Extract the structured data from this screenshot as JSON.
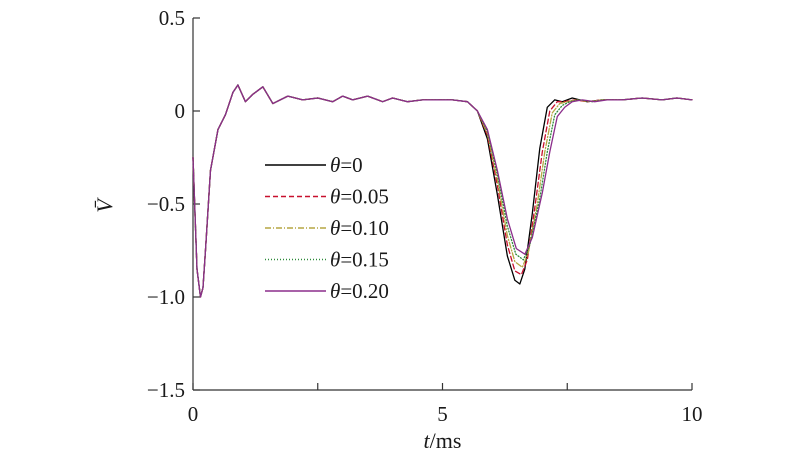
{
  "chart_data": {
    "type": "line",
    "title": "",
    "xlabel": "t/ms",
    "ylabel": "V̄",
    "xlim": [
      0,
      10
    ],
    "ylim": [
      -1.5,
      0.5
    ],
    "x_ticks": [
      0,
      5,
      10
    ],
    "x_tick_labels": [
      "0",
      "5",
      "10"
    ],
    "x_minor_ticks": [
      2.5,
      7.5
    ],
    "y_ticks": [
      0.5,
      0,
      -0.5,
      -1.0,
      -1.5
    ],
    "y_tick_labels": [
      "0.5",
      "0",
      "−0.5",
      "−1.0",
      "−1.5"
    ],
    "grid": false,
    "legend_position": "center-left",
    "series": [
      {
        "name": "θ=0",
        "color": "#000000",
        "dash": "",
        "x": [
          0,
          0.08,
          0.15,
          0.2,
          0.25,
          0.35,
          0.5,
          0.65,
          0.8,
          0.9,
          1.05,
          1.2,
          1.4,
          1.6,
          1.9,
          2.2,
          2.5,
          2.8,
          3.0,
          3.2,
          3.5,
          3.8,
          4.0,
          4.3,
          4.6,
          4.9,
          5.2,
          5.5,
          5.7,
          5.9,
          6.1,
          6.3,
          6.45,
          6.55,
          6.65,
          6.8,
          6.95,
          7.1,
          7.25,
          7.4,
          7.6,
          7.9,
          8.2,
          8.6,
          9.0,
          9.4,
          9.7,
          10.0
        ],
        "y": [
          -0.25,
          -0.85,
          -1.0,
          -0.95,
          -0.75,
          -0.32,
          -0.1,
          -0.02,
          0.1,
          0.14,
          0.05,
          0.09,
          0.13,
          0.04,
          0.08,
          0.06,
          0.07,
          0.05,
          0.08,
          0.06,
          0.08,
          0.05,
          0.07,
          0.05,
          0.06,
          0.06,
          0.06,
          0.05,
          0.0,
          -0.15,
          -0.45,
          -0.78,
          -0.91,
          -0.93,
          -0.85,
          -0.55,
          -0.2,
          0.02,
          0.06,
          0.05,
          0.07,
          0.05,
          0.06,
          0.06,
          0.07,
          0.06,
          0.07,
          0.06
        ]
      },
      {
        "name": "θ=0.05",
        "color": "#c8102e",
        "dash": "5,3",
        "x": [
          0,
          0.08,
          0.15,
          0.2,
          0.25,
          0.35,
          0.5,
          0.65,
          0.8,
          0.9,
          1.05,
          1.2,
          1.4,
          1.6,
          1.9,
          2.2,
          2.5,
          2.8,
          3.0,
          3.2,
          3.5,
          3.8,
          4.0,
          4.3,
          4.6,
          4.9,
          5.2,
          5.5,
          5.7,
          5.9,
          6.1,
          6.3,
          6.45,
          6.58,
          6.7,
          6.85,
          7.0,
          7.15,
          7.3,
          7.45,
          7.65,
          7.9,
          8.2,
          8.6,
          9.0,
          9.4,
          9.7,
          10.0
        ],
        "y": [
          -0.25,
          -0.85,
          -1.0,
          -0.95,
          -0.75,
          -0.32,
          -0.1,
          -0.02,
          0.1,
          0.14,
          0.05,
          0.09,
          0.13,
          0.04,
          0.08,
          0.06,
          0.07,
          0.05,
          0.08,
          0.06,
          0.08,
          0.05,
          0.07,
          0.05,
          0.06,
          0.06,
          0.06,
          0.05,
          0.0,
          -0.13,
          -0.4,
          -0.72,
          -0.86,
          -0.88,
          -0.8,
          -0.52,
          -0.22,
          0.0,
          0.05,
          0.05,
          0.06,
          0.05,
          0.06,
          0.06,
          0.07,
          0.06,
          0.07,
          0.06
        ]
      },
      {
        "name": "θ=0.10",
        "color": "#b5a642",
        "dash": "6,2,1,2",
        "x": [
          0,
          0.08,
          0.15,
          0.2,
          0.25,
          0.35,
          0.5,
          0.65,
          0.8,
          0.9,
          1.05,
          1.2,
          1.4,
          1.6,
          1.9,
          2.2,
          2.5,
          2.8,
          3.0,
          3.2,
          3.5,
          3.8,
          4.0,
          4.3,
          4.6,
          4.9,
          5.2,
          5.5,
          5.7,
          5.9,
          6.1,
          6.3,
          6.45,
          6.6,
          6.72,
          6.9,
          7.05,
          7.2,
          7.35,
          7.5,
          7.7,
          7.95,
          8.2,
          8.6,
          9.0,
          9.4,
          9.7,
          10.0
        ],
        "y": [
          -0.25,
          -0.85,
          -1.0,
          -0.95,
          -0.75,
          -0.32,
          -0.1,
          -0.02,
          0.1,
          0.14,
          0.05,
          0.09,
          0.13,
          0.04,
          0.08,
          0.06,
          0.07,
          0.05,
          0.08,
          0.06,
          0.08,
          0.05,
          0.07,
          0.05,
          0.06,
          0.06,
          0.06,
          0.05,
          0.0,
          -0.12,
          -0.37,
          -0.67,
          -0.81,
          -0.84,
          -0.76,
          -0.5,
          -0.22,
          -0.01,
          0.04,
          0.05,
          0.06,
          0.05,
          0.06,
          0.06,
          0.07,
          0.06,
          0.07,
          0.06
        ]
      },
      {
        "name": "θ=0.15",
        "color": "#2e8b3a",
        "dash": "1,2",
        "x": [
          0,
          0.08,
          0.15,
          0.2,
          0.25,
          0.35,
          0.5,
          0.65,
          0.8,
          0.9,
          1.05,
          1.2,
          1.4,
          1.6,
          1.9,
          2.2,
          2.5,
          2.8,
          3.0,
          3.2,
          3.5,
          3.8,
          4.0,
          4.3,
          4.6,
          4.9,
          5.2,
          5.5,
          5.7,
          5.9,
          6.1,
          6.3,
          6.47,
          6.62,
          6.75,
          6.95,
          7.1,
          7.25,
          7.4,
          7.55,
          7.75,
          8.0,
          8.25,
          8.6,
          9.0,
          9.4,
          9.7,
          10.0
        ],
        "y": [
          -0.25,
          -0.85,
          -1.0,
          -0.95,
          -0.75,
          -0.32,
          -0.1,
          -0.02,
          0.1,
          0.14,
          0.05,
          0.09,
          0.13,
          0.04,
          0.08,
          0.06,
          0.07,
          0.05,
          0.08,
          0.06,
          0.08,
          0.05,
          0.07,
          0.05,
          0.06,
          0.06,
          0.06,
          0.05,
          0.0,
          -0.11,
          -0.34,
          -0.62,
          -0.77,
          -0.8,
          -0.72,
          -0.47,
          -0.22,
          -0.02,
          0.03,
          0.05,
          0.06,
          0.05,
          0.06,
          0.06,
          0.07,
          0.06,
          0.07,
          0.06
        ]
      },
      {
        "name": "θ=0.20",
        "color": "#8b2d8b",
        "dash": "",
        "x": [
          0,
          0.08,
          0.15,
          0.2,
          0.25,
          0.35,
          0.5,
          0.65,
          0.8,
          0.9,
          1.05,
          1.2,
          1.4,
          1.6,
          1.9,
          2.2,
          2.5,
          2.8,
          3.0,
          3.2,
          3.5,
          3.8,
          4.0,
          4.3,
          4.6,
          4.9,
          5.2,
          5.5,
          5.7,
          5.9,
          6.1,
          6.3,
          6.48,
          6.65,
          6.8,
          7.0,
          7.15,
          7.3,
          7.45,
          7.6,
          7.8,
          8.05,
          8.3,
          8.6,
          9.0,
          9.4,
          9.7,
          10.0
        ],
        "y": [
          -0.25,
          -0.85,
          -1.0,
          -0.95,
          -0.75,
          -0.32,
          -0.1,
          -0.02,
          0.1,
          0.14,
          0.05,
          0.09,
          0.13,
          0.04,
          0.08,
          0.06,
          0.07,
          0.05,
          0.08,
          0.06,
          0.08,
          0.05,
          0.07,
          0.05,
          0.06,
          0.06,
          0.06,
          0.05,
          0.0,
          -0.1,
          -0.32,
          -0.58,
          -0.74,
          -0.77,
          -0.68,
          -0.44,
          -0.22,
          -0.03,
          0.02,
          0.05,
          0.06,
          0.05,
          0.06,
          0.06,
          0.07,
          0.06,
          0.07,
          0.06
        ]
      }
    ]
  }
}
